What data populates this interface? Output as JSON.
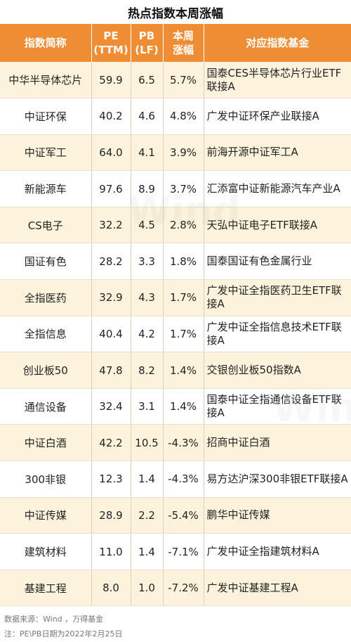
{
  "title": "热点指数本周涨幅",
  "watermark": "Wind",
  "headers": {
    "name": "指数简称",
    "pe_l1": "PE",
    "pe_l2": "(TTM)",
    "pb_l1": "PB",
    "pb_l2": "(LF)",
    "chg_l1": "本周",
    "chg_l2": "涨幅",
    "fund": "对应指数基金"
  },
  "rows": [
    {
      "name": "中华半导体芯片",
      "pe": "59.9",
      "pb": "6.5",
      "chg": "5.7%",
      "fund": "国泰CES半导体芯片行业ETF联接A"
    },
    {
      "name": "中证环保",
      "pe": "40.2",
      "pb": "4.6",
      "chg": "4.8%",
      "fund": "广发中证环保产业联接A"
    },
    {
      "name": "中证军工",
      "pe": "64.0",
      "pb": "4.1",
      "chg": "3.9%",
      "fund": "前海开源中证军工A"
    },
    {
      "name": "新能源车",
      "pe": "97.6",
      "pb": "8.9",
      "chg": "3.7%",
      "fund": "汇添富中证新能源汽车产业A"
    },
    {
      "name": "CS电子",
      "pe": "32.2",
      "pb": "4.5",
      "chg": "2.8%",
      "fund": "天弘中证电子ETF联接A"
    },
    {
      "name": "国证有色",
      "pe": "28.2",
      "pb": "3.3",
      "chg": "1.8%",
      "fund": "国泰国证有色金属行业"
    },
    {
      "name": "全指医药",
      "pe": "32.9",
      "pb": "4.3",
      "chg": "1.7%",
      "fund": "广发中证全指医药卫生ETF联接A"
    },
    {
      "name": "全指信息",
      "pe": "40.4",
      "pb": "4.2",
      "chg": "1.7%",
      "fund": "广发中证全指信息技术ETF联接A"
    },
    {
      "name": "创业板50",
      "pe": "47.8",
      "pb": "8.2",
      "chg": "1.4%",
      "fund": "交银创业板50指数A"
    },
    {
      "name": "通信设备",
      "pe": "32.4",
      "pb": "3.1",
      "chg": "1.4%",
      "fund": "国泰中证全指通信设备ETF联接A"
    },
    {
      "name": "中证白酒",
      "pe": "42.2",
      "pb": "10.5",
      "chg": "-4.3%",
      "fund": "招商中证白酒"
    },
    {
      "name": "300非银",
      "pe": "12.3",
      "pb": "1.4",
      "chg": "-4.3%",
      "fund": "易方达沪深300非银ETF联接A"
    },
    {
      "name": "中证传媒",
      "pe": "28.9",
      "pb": "2.2",
      "chg": "-5.4%",
      "fund": "鹏华中证传媒"
    },
    {
      "name": "建筑材料",
      "pe": "11.0",
      "pb": "1.4",
      "chg": "-7.1%",
      "fund": "广发中证全指建筑材料A"
    },
    {
      "name": "基建工程",
      "pe": "8.0",
      "pb": "1.0",
      "chg": "-7.2%",
      "fund": "广发中证基建工程A"
    }
  ],
  "footer": {
    "source": "数据来源：Wind ，万得基金",
    "note": "注：PE\\PB日期为2022年2月25日"
  }
}
